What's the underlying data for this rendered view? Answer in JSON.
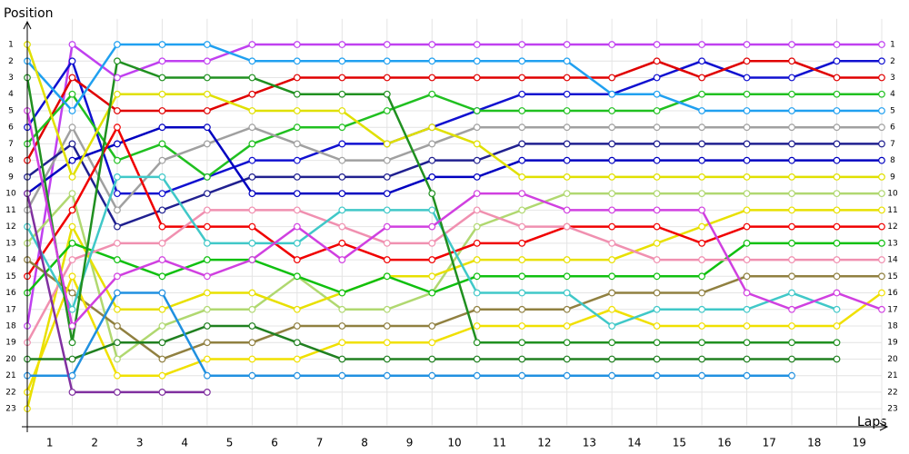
{
  "chart_data": {
    "type": "line",
    "y_label": "Position",
    "x_label": "Laps",
    "grid": true,
    "x": [
      0,
      1,
      2,
      3,
      4,
      5,
      6,
      7,
      8,
      9,
      10,
      11,
      12,
      13,
      14,
      15,
      16,
      17,
      18,
      19
    ],
    "xlim": [
      0,
      19
    ],
    "xticks": [
      {
        "value": 0.5,
        "label": "1"
      },
      {
        "value": 1.5,
        "label": "2"
      },
      {
        "value": 2.5,
        "label": "3"
      },
      {
        "value": 3.5,
        "label": "4"
      },
      {
        "value": 4.5,
        "label": "5"
      },
      {
        "value": 5.5,
        "label": "6"
      },
      {
        "value": 6.5,
        "label": "7"
      },
      {
        "value": 7.5,
        "label": "8"
      },
      {
        "value": 8.5,
        "label": "9"
      },
      {
        "value": 9.5,
        "label": "10"
      },
      {
        "value": 10.5,
        "label": "11"
      },
      {
        "value": 11.5,
        "label": "12"
      },
      {
        "value": 12.5,
        "label": "13"
      },
      {
        "value": 13.5,
        "label": "14"
      },
      {
        "value": 14.5,
        "label": "15"
      },
      {
        "value": 15.5,
        "label": "16"
      },
      {
        "value": 16.5,
        "label": "17"
      },
      {
        "value": 17.5,
        "label": "18"
      },
      {
        "value": 18.5,
        "label": "19"
      }
    ],
    "ylim": [
      24,
      0
    ],
    "yticks": [
      1,
      2,
      3,
      4,
      5,
      6,
      7,
      8,
      9,
      10,
      11,
      12,
      13,
      14,
      15,
      16,
      17,
      18,
      19,
      20,
      21,
      22,
      23
    ],
    "series": [
      {
        "color": "#c040f0",
        "values": [
          18,
          1,
          3,
          2,
          2,
          1,
          1,
          1,
          1,
          1,
          1,
          1,
          1,
          1,
          1,
          1,
          1,
          1,
          1,
          1
        ]
      },
      {
        "color": "#1010d0",
        "values": [
          6,
          2,
          10,
          10,
          9,
          8,
          8,
          7,
          7,
          6,
          5,
          4,
          4,
          4,
          3,
          2,
          3,
          3,
          2,
          2
        ]
      },
      {
        "color": "#e00000",
        "values": [
          8,
          3,
          5,
          5,
          5,
          4,
          3,
          3,
          3,
          3,
          3,
          3,
          3,
          3,
          2,
          3,
          2,
          2,
          3,
          3
        ]
      },
      {
        "color": "#20c020",
        "values": [
          7,
          4,
          8,
          7,
          9,
          7,
          6,
          6,
          5,
          4,
          5,
          5,
          5,
          5,
          5,
          4,
          4,
          4,
          4,
          4
        ]
      },
      {
        "color": "#20a0f0",
        "values": [
          2,
          5,
          1,
          1,
          1,
          2,
          2,
          2,
          2,
          2,
          2,
          2,
          2,
          4,
          4,
          5,
          5,
          5,
          5,
          5
        ]
      },
      {
        "color": "#a0a0a0",
        "values": [
          11,
          6,
          11,
          8,
          7,
          6,
          7,
          8,
          8,
          7,
          6,
          6,
          6,
          6,
          6,
          6,
          6,
          6,
          6,
          6
        ]
      },
      {
        "color": "#202090",
        "values": [
          9,
          7,
          12,
          11,
          10,
          9,
          9,
          9,
          9,
          8,
          8,
          7,
          7,
          7,
          7,
          7,
          7,
          7,
          7,
          7
        ]
      },
      {
        "color": "#0000c0",
        "values": [
          10,
          8,
          7,
          6,
          6,
          10,
          10,
          10,
          10,
          9,
          9,
          8,
          8,
          8,
          8,
          8,
          8,
          8,
          8,
          8
        ]
      },
      {
        "color": "#e0e000",
        "values": [
          1,
          9,
          4,
          4,
          4,
          5,
          5,
          5,
          7,
          6,
          7,
          9,
          9,
          9,
          9,
          9,
          9,
          9,
          9,
          9
        ]
      },
      {
        "color": "#b0d870",
        "values": [
          13,
          10,
          20,
          18,
          17,
          17,
          15,
          17,
          17,
          16,
          12,
          11,
          10,
          10,
          10,
          10,
          10,
          10,
          10,
          10
        ]
      },
      {
        "color": "#e8e000",
        "values": [
          23,
          12,
          17,
          17,
          16,
          16,
          17,
          16,
          15,
          15,
          14,
          14,
          14,
          14,
          13,
          12,
          11,
          11,
          11,
          11
        ]
      },
      {
        "color": "#f00000",
        "values": [
          15,
          11,
          6,
          12,
          12,
          12,
          14,
          13,
          14,
          14,
          13,
          13,
          12,
          12,
          12,
          13,
          12,
          12,
          12,
          12
        ]
      },
      {
        "color": "#10c010",
        "values": [
          16,
          13,
          14,
          15,
          14,
          14,
          15,
          16,
          15,
          16,
          15,
          15,
          15,
          15,
          15,
          15,
          13,
          13,
          13,
          13
        ]
      },
      {
        "color": "#f090b0",
        "values": [
          19,
          14,
          13,
          13,
          11,
          11,
          11,
          12,
          13,
          13,
          11,
          12,
          12,
          13,
          14,
          14,
          14,
          14,
          14,
          14
        ]
      },
      {
        "color": "#908040",
        "values": [
          14,
          16,
          18,
          20,
          19,
          19,
          18,
          18,
          18,
          18,
          17,
          17,
          17,
          16,
          16,
          16,
          15,
          15,
          15,
          15
        ]
      },
      {
        "color": "#f0e000",
        "values": [
          22,
          15,
          21,
          21,
          20,
          20,
          20,
          19,
          19,
          19,
          18,
          18,
          18,
          17,
          18,
          18,
          18,
          18,
          18,
          16
        ]
      },
      {
        "color": "#40c8c8",
        "values": [
          12,
          17,
          9,
          9,
          13,
          13,
          13,
          11,
          11,
          11,
          16,
          16,
          16,
          18,
          17,
          17,
          17,
          16,
          17,
          null
        ]
      },
      {
        "color": "#209020",
        "values": [
          3,
          19,
          2,
          3,
          3,
          3,
          4,
          4,
          4,
          10,
          19,
          19,
          19,
          19,
          19,
          19,
          19,
          19,
          19,
          null
        ]
      },
      {
        "color": "#208020",
        "values": [
          20,
          20,
          19,
          19,
          18,
          18,
          19,
          20,
          20,
          20,
          20,
          20,
          20,
          20,
          20,
          20,
          20,
          20,
          20,
          null
        ]
      },
      {
        "color": "#2090e0",
        "values": [
          21,
          21,
          16,
          16,
          21,
          21,
          21,
          21,
          21,
          21,
          21,
          21,
          21,
          21,
          21,
          21,
          21,
          21,
          null,
          null
        ]
      },
      {
        "color": "#8030a0",
        "values": [
          10,
          22,
          22,
          22,
          22,
          null,
          null,
          null,
          null,
          null,
          null,
          null,
          null,
          null,
          null,
          null,
          null,
          null,
          null,
          null
        ]
      },
      {
        "color": "#d040e0",
        "values": [
          5,
          18,
          15,
          14,
          15,
          14,
          12,
          14,
          12,
          12,
          10,
          10,
          11,
          11,
          11,
          11,
          16,
          17,
          16,
          17
        ]
      }
    ]
  }
}
